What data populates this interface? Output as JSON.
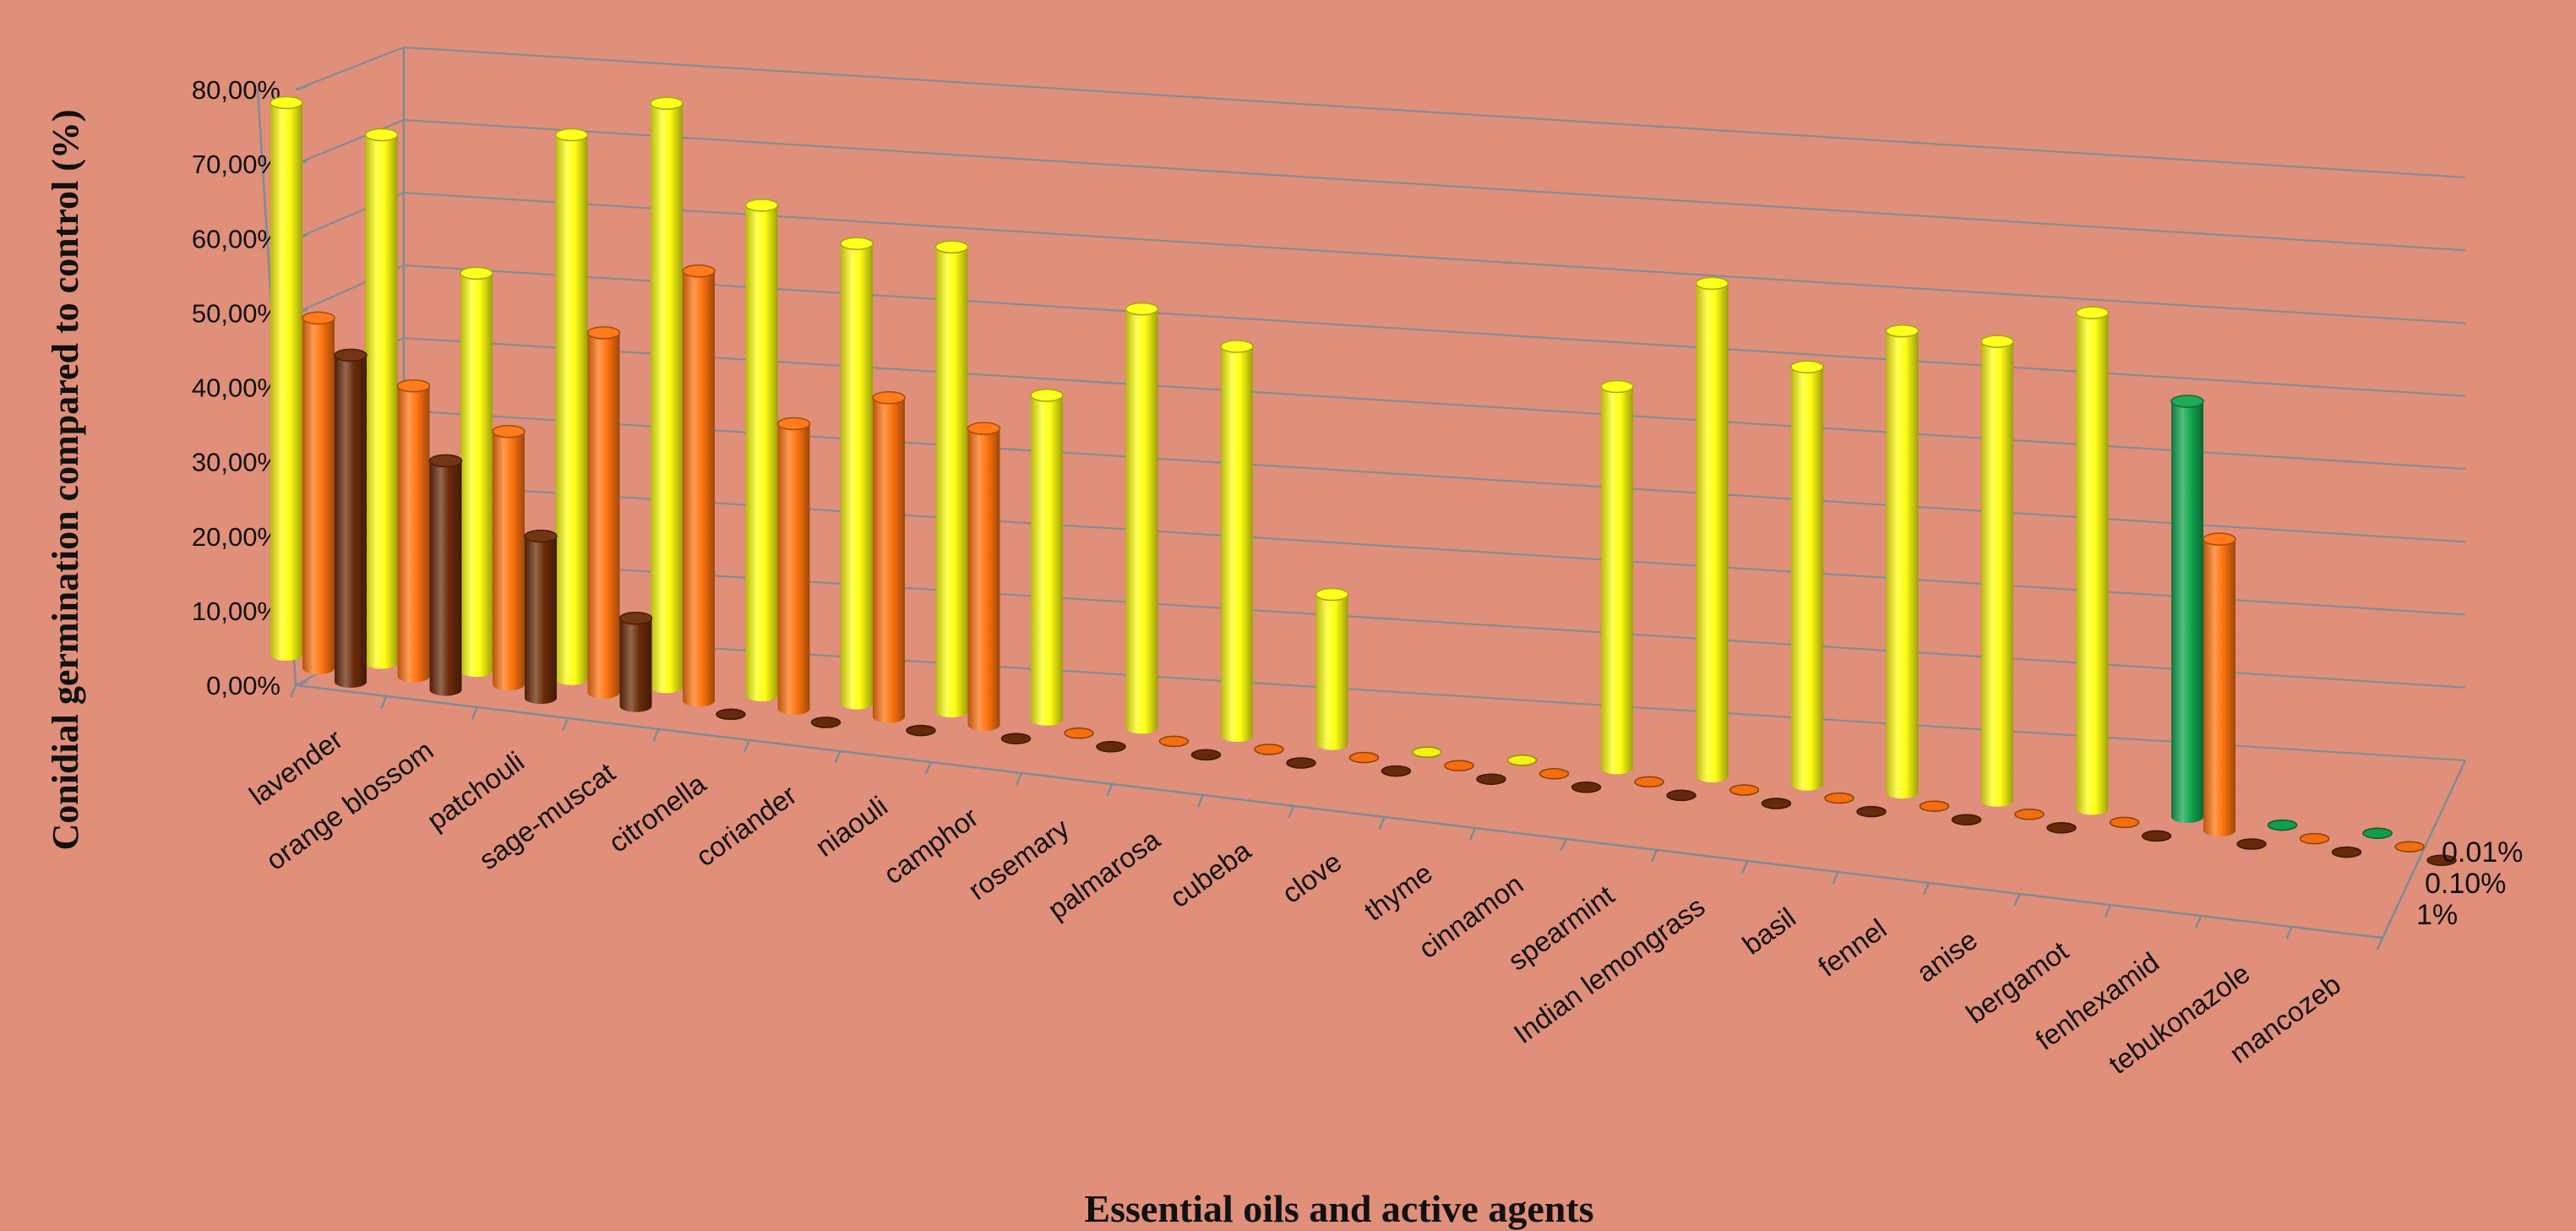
{
  "colors": {
    "background": "#e08f7a",
    "series_1pct": "#6b2b0a",
    "series_0_10pct": "#ff7410",
    "series_0_01pct": "#ffff14",
    "reference": "#12a650"
  },
  "chart_data": {
    "type": "bar",
    "subtype": "3d-cylinder-clustered-depth",
    "title": "",
    "xlabel": "Essential oils and active agents",
    "ylabel": "Conidial germination compared to control (%)",
    "ylim": [
      0,
      80
    ],
    "yticks": [
      "0,00%",
      "10,00%",
      "20,00%",
      "30,00%",
      "40,00%",
      "50,00%",
      "60,00%",
      "70,00%",
      "80,00%"
    ],
    "grid": true,
    "depth_labels": [
      "0.01%",
      "0.10%",
      "1%"
    ],
    "categories": [
      "lavender",
      "orange blossom",
      "patchouli",
      "sage-muscat",
      "citronella",
      "coriander",
      "niaouli",
      "camphor",
      "rosemary",
      "palmarosa",
      "cubeba",
      "clove",
      "thyme",
      "cinnamon",
      "spearmint",
      "Indian lemongrass",
      "basil",
      "fennel",
      "anise",
      "bergamot",
      "fenhexamid",
      "tebukonazole",
      "mancozeb"
    ],
    "series": [
      {
        "name": "1%",
        "values": [
          44,
          31,
          22,
          12,
          0,
          0,
          0,
          0,
          0,
          0,
          0,
          0,
          0,
          0,
          0,
          0,
          0,
          0,
          0,
          0,
          0,
          0,
          0
        ]
      },
      {
        "name": "0.10%",
        "values": [
          48,
          40,
          35,
          50,
          60,
          40,
          45,
          42,
          0,
          0,
          0,
          0,
          0,
          0,
          0,
          0,
          0,
          0,
          0,
          0,
          44,
          0,
          0
        ]
      },
      {
        "name": "0.01%",
        "values": [
          77,
          74,
          56,
          77,
          83,
          70,
          66,
          67,
          47,
          61,
          57,
          22,
          0,
          0,
          57,
          74,
          63,
          70,
          70,
          76,
          0,
          0,
          0
        ]
      }
    ],
    "reference_series": {
      "name": "",
      "values": [
        0,
        0,
        0,
        0,
        0,
        0,
        0,
        0,
        0,
        0,
        0,
        0,
        0,
        0,
        0,
        0,
        0,
        0,
        0,
        0,
        64,
        0,
        0
      ]
    }
  }
}
